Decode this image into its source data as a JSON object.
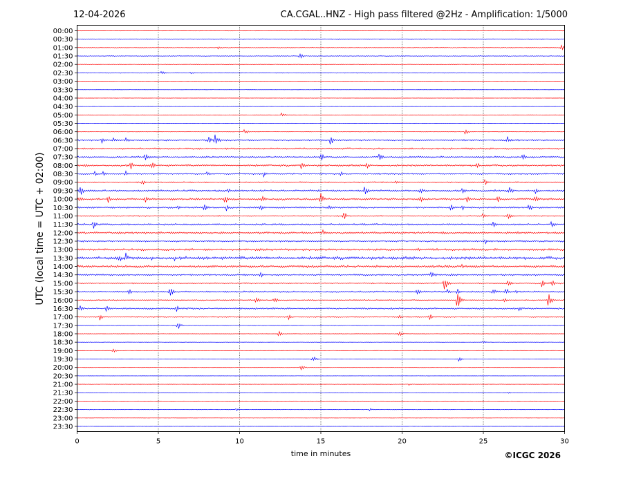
{
  "chart_data": {
    "type": "line",
    "date": "12-04-2026",
    "title": "CA.CGAL..HNZ - High pass filtered @2Hz - Amplification: 1/5000",
    "ylabel": "UTC (local time = UTC + 02:00)",
    "xlabel": "time in minutes",
    "xlim": [
      0,
      30
    ],
    "x_ticks": [
      0,
      5,
      10,
      15,
      20,
      25,
      30
    ],
    "grid_x": true,
    "copyright": "©ICGC 2026",
    "series_colors": [
      "#ff0000",
      "#0000ff"
    ],
    "rows": [
      {
        "label": "00:00",
        "amp": 0.3,
        "events": []
      },
      {
        "label": "00:30",
        "amp": 0.7,
        "events": []
      },
      {
        "label": "01:00",
        "amp": 0.6,
        "events": [
          {
            "t": 8.7,
            "a": 3
          },
          {
            "t": 29.8,
            "a": 5
          }
        ]
      },
      {
        "label": "01:30",
        "amp": 0.6,
        "events": [
          {
            "t": 13.7,
            "a": 5
          }
        ]
      },
      {
        "label": "02:00",
        "amp": 0.5,
        "events": []
      },
      {
        "label": "02:30",
        "amp": 0.6,
        "events": [
          {
            "t": 5.2,
            "a": 3
          },
          {
            "t": 7.0,
            "a": 2
          }
        ]
      },
      {
        "label": "03:00",
        "amp": 0.2,
        "events": []
      },
      {
        "label": "03:30",
        "amp": 0.2,
        "events": []
      },
      {
        "label": "04:00",
        "amp": 0.2,
        "events": []
      },
      {
        "label": "04:30",
        "amp": 0.2,
        "events": []
      },
      {
        "label": "05:00",
        "amp": 0.2,
        "events": [
          {
            "t": 12.6,
            "a": 4
          }
        ]
      },
      {
        "label": "05:30",
        "amp": 0.2,
        "events": []
      },
      {
        "label": "06:00",
        "amp": 0.3,
        "events": [
          {
            "t": 10.3,
            "a": 5
          },
          {
            "t": 23.9,
            "a": 5
          }
        ]
      },
      {
        "label": "06:30",
        "amp": 1.2,
        "events": [
          {
            "t": 1.5,
            "a": 5
          },
          {
            "t": 2.2,
            "a": 4
          },
          {
            "t": 3.0,
            "a": 5
          },
          {
            "t": 8.1,
            "a": 5
          },
          {
            "t": 8.5,
            "a": 11
          },
          {
            "t": 15.6,
            "a": 8
          },
          {
            "t": 26.5,
            "a": 6
          }
        ]
      },
      {
        "label": "07:00",
        "amp": 1.3,
        "events": []
      },
      {
        "label": "07:30",
        "amp": 1.4,
        "events": [
          {
            "t": 4.2,
            "a": 8
          },
          {
            "t": 15.0,
            "a": 7
          },
          {
            "t": 18.6,
            "a": 7
          },
          {
            "t": 27.4,
            "a": 8
          }
        ]
      },
      {
        "label": "08:00",
        "amp": 1.5,
        "events": [
          {
            "t": 0.5,
            "a": 4
          },
          {
            "t": 3.3,
            "a": 6
          },
          {
            "t": 4.6,
            "a": 7
          },
          {
            "t": 13.8,
            "a": 7
          },
          {
            "t": 17.8,
            "a": 6
          },
          {
            "t": 24.6,
            "a": 6
          }
        ]
      },
      {
        "label": "08:30",
        "amp": 1.2,
        "events": [
          {
            "t": 1.1,
            "a": 5
          },
          {
            "t": 1.6,
            "a": 6
          },
          {
            "t": 3.0,
            "a": 5
          },
          {
            "t": 8.0,
            "a": 4
          },
          {
            "t": 11.5,
            "a": 5
          },
          {
            "t": 16.2,
            "a": 5
          }
        ]
      },
      {
        "label": "09:00",
        "amp": 1.1,
        "events": [
          {
            "t": 4.0,
            "a": 6
          },
          {
            "t": 19.6,
            "a": 4
          },
          {
            "t": 25.1,
            "a": 5
          }
        ]
      },
      {
        "label": "09:30",
        "amp": 1.5,
        "events": [
          {
            "t": 0.2,
            "a": 8
          },
          {
            "t": 9.3,
            "a": 4
          },
          {
            "t": 17.7,
            "a": 7
          },
          {
            "t": 21.1,
            "a": 7
          },
          {
            "t": 23.7,
            "a": 6
          },
          {
            "t": 26.6,
            "a": 8
          },
          {
            "t": 28.2,
            "a": 6
          }
        ]
      },
      {
        "label": "10:00",
        "amp": 1.6,
        "events": [
          {
            "t": 0.1,
            "a": 7
          },
          {
            "t": 1.9,
            "a": 6
          },
          {
            "t": 4.2,
            "a": 6
          },
          {
            "t": 9.1,
            "a": 8
          },
          {
            "t": 11.4,
            "a": 5
          },
          {
            "t": 15.0,
            "a": 9
          },
          {
            "t": 21.1,
            "a": 6
          },
          {
            "t": 24.0,
            "a": 5
          },
          {
            "t": 25.9,
            "a": 6
          },
          {
            "t": 28.2,
            "a": 6
          }
        ]
      },
      {
        "label": "10:30",
        "amp": 1.4,
        "events": [
          {
            "t": 6.2,
            "a": 3
          },
          {
            "t": 7.8,
            "a": 8
          },
          {
            "t": 9.2,
            "a": 6
          },
          {
            "t": 11.3,
            "a": 5
          },
          {
            "t": 15.5,
            "a": 4
          },
          {
            "t": 23.0,
            "a": 7
          },
          {
            "t": 23.7,
            "a": 5
          },
          {
            "t": 27.8,
            "a": 7
          }
        ]
      },
      {
        "label": "11:00",
        "amp": 0.9,
        "events": [
          {
            "t": 16.4,
            "a": 7
          },
          {
            "t": 25.0,
            "a": 6
          },
          {
            "t": 26.5,
            "a": 7
          }
        ]
      },
      {
        "label": "11:30",
        "amp": 1.4,
        "events": [
          {
            "t": 1.0,
            "a": 7
          },
          {
            "t": 25.6,
            "a": 5
          },
          {
            "t": 29.2,
            "a": 6
          }
        ]
      },
      {
        "label": "12:00",
        "amp": 1.6,
        "events": [
          {
            "t": 15.1,
            "a": 5
          },
          {
            "t": 22.5,
            "a": 3
          }
        ]
      },
      {
        "label": "12:30",
        "amp": 1.3,
        "events": [
          {
            "t": 25.1,
            "a": 5
          }
        ]
      },
      {
        "label": "13:00",
        "amp": 1.8,
        "events": [
          {
            "t": 4.0,
            "a": 3
          },
          {
            "t": 21.0,
            "a": 3
          }
        ]
      },
      {
        "label": "13:30",
        "amp": 2.4,
        "events": [
          {
            "t": 2.6,
            "a": 6
          },
          {
            "t": 3.0,
            "a": 8
          },
          {
            "t": 4.6,
            "a": 5
          },
          {
            "t": 6.0,
            "a": 4
          }
        ]
      },
      {
        "label": "14:00",
        "amp": 2.0,
        "events": [
          {
            "t": 23.7,
            "a": 5
          }
        ]
      },
      {
        "label": "14:30",
        "amp": 1.4,
        "events": [
          {
            "t": 11.3,
            "a": 5
          },
          {
            "t": 21.8,
            "a": 8
          },
          {
            "t": 23.0,
            "a": 3
          }
        ]
      },
      {
        "label": "15:00",
        "amp": 1.0,
        "events": [
          {
            "t": 22.6,
            "a": 12
          },
          {
            "t": 26.5,
            "a": 6
          },
          {
            "t": 28.6,
            "a": 6
          },
          {
            "t": 29.2,
            "a": 6
          }
        ]
      },
      {
        "label": "15:30",
        "amp": 1.2,
        "events": [
          {
            "t": 3.2,
            "a": 5
          },
          {
            "t": 5.7,
            "a": 9
          },
          {
            "t": 20.9,
            "a": 6
          },
          {
            "t": 22.8,
            "a": 4
          },
          {
            "t": 23.4,
            "a": 5
          },
          {
            "t": 25.6,
            "a": 7
          },
          {
            "t": 26.4,
            "a": 6
          },
          {
            "t": 27.0,
            "a": 4
          }
        ]
      },
      {
        "label": "16:00",
        "amp": 0.9,
        "events": [
          {
            "t": 11.0,
            "a": 7
          },
          {
            "t": 12.1,
            "a": 6
          },
          {
            "t": 23.4,
            "a": 16
          },
          {
            "t": 26.3,
            "a": 4
          },
          {
            "t": 29.0,
            "a": 11
          }
        ]
      },
      {
        "label": "16:30",
        "amp": 1.3,
        "events": [
          {
            "t": 0.2,
            "a": 6
          },
          {
            "t": 1.8,
            "a": 5
          },
          {
            "t": 6.1,
            "a": 7
          },
          {
            "t": 27.2,
            "a": 5
          }
        ]
      },
      {
        "label": "17:00",
        "amp": 0.9,
        "events": [
          {
            "t": 1.4,
            "a": 5
          },
          {
            "t": 13.0,
            "a": 5
          },
          {
            "t": 19.8,
            "a": 4
          },
          {
            "t": 21.7,
            "a": 5
          }
        ]
      },
      {
        "label": "17:30",
        "amp": 0.5,
        "events": [
          {
            "t": 6.2,
            "a": 7
          }
        ]
      },
      {
        "label": "18:00",
        "amp": 0.3,
        "events": [
          {
            "t": 12.4,
            "a": 5
          },
          {
            "t": 19.8,
            "a": 6
          }
        ]
      },
      {
        "label": "18:30",
        "amp": 0.3,
        "events": [
          {
            "t": 25.0,
            "a": 2
          }
        ]
      },
      {
        "label": "19:00",
        "amp": 0.3,
        "events": [
          {
            "t": 2.2,
            "a": 4
          }
        ]
      },
      {
        "label": "19:30",
        "amp": 0.3,
        "events": [
          {
            "t": 14.5,
            "a": 6
          },
          {
            "t": 23.5,
            "a": 4
          }
        ]
      },
      {
        "label": "20:00",
        "amp": 0.3,
        "events": [
          {
            "t": 13.8,
            "a": 5
          }
        ]
      },
      {
        "label": "20:30",
        "amp": 0.2,
        "events": []
      },
      {
        "label": "21:00",
        "amp": 0.3,
        "events": [
          {
            "t": 20.4,
            "a": 2
          }
        ]
      },
      {
        "label": "21:30",
        "amp": 0.3,
        "events": [
          {
            "t": 26.5,
            "a": 2
          }
        ]
      },
      {
        "label": "22:00",
        "amp": 0.2,
        "events": []
      },
      {
        "label": "22:30",
        "amp": 0.4,
        "events": [
          {
            "t": 9.8,
            "a": 2
          },
          {
            "t": 18.0,
            "a": 2
          }
        ]
      },
      {
        "label": "23:00",
        "amp": 0.2,
        "events": []
      },
      {
        "label": "23:30",
        "amp": 0.2,
        "events": []
      }
    ]
  }
}
